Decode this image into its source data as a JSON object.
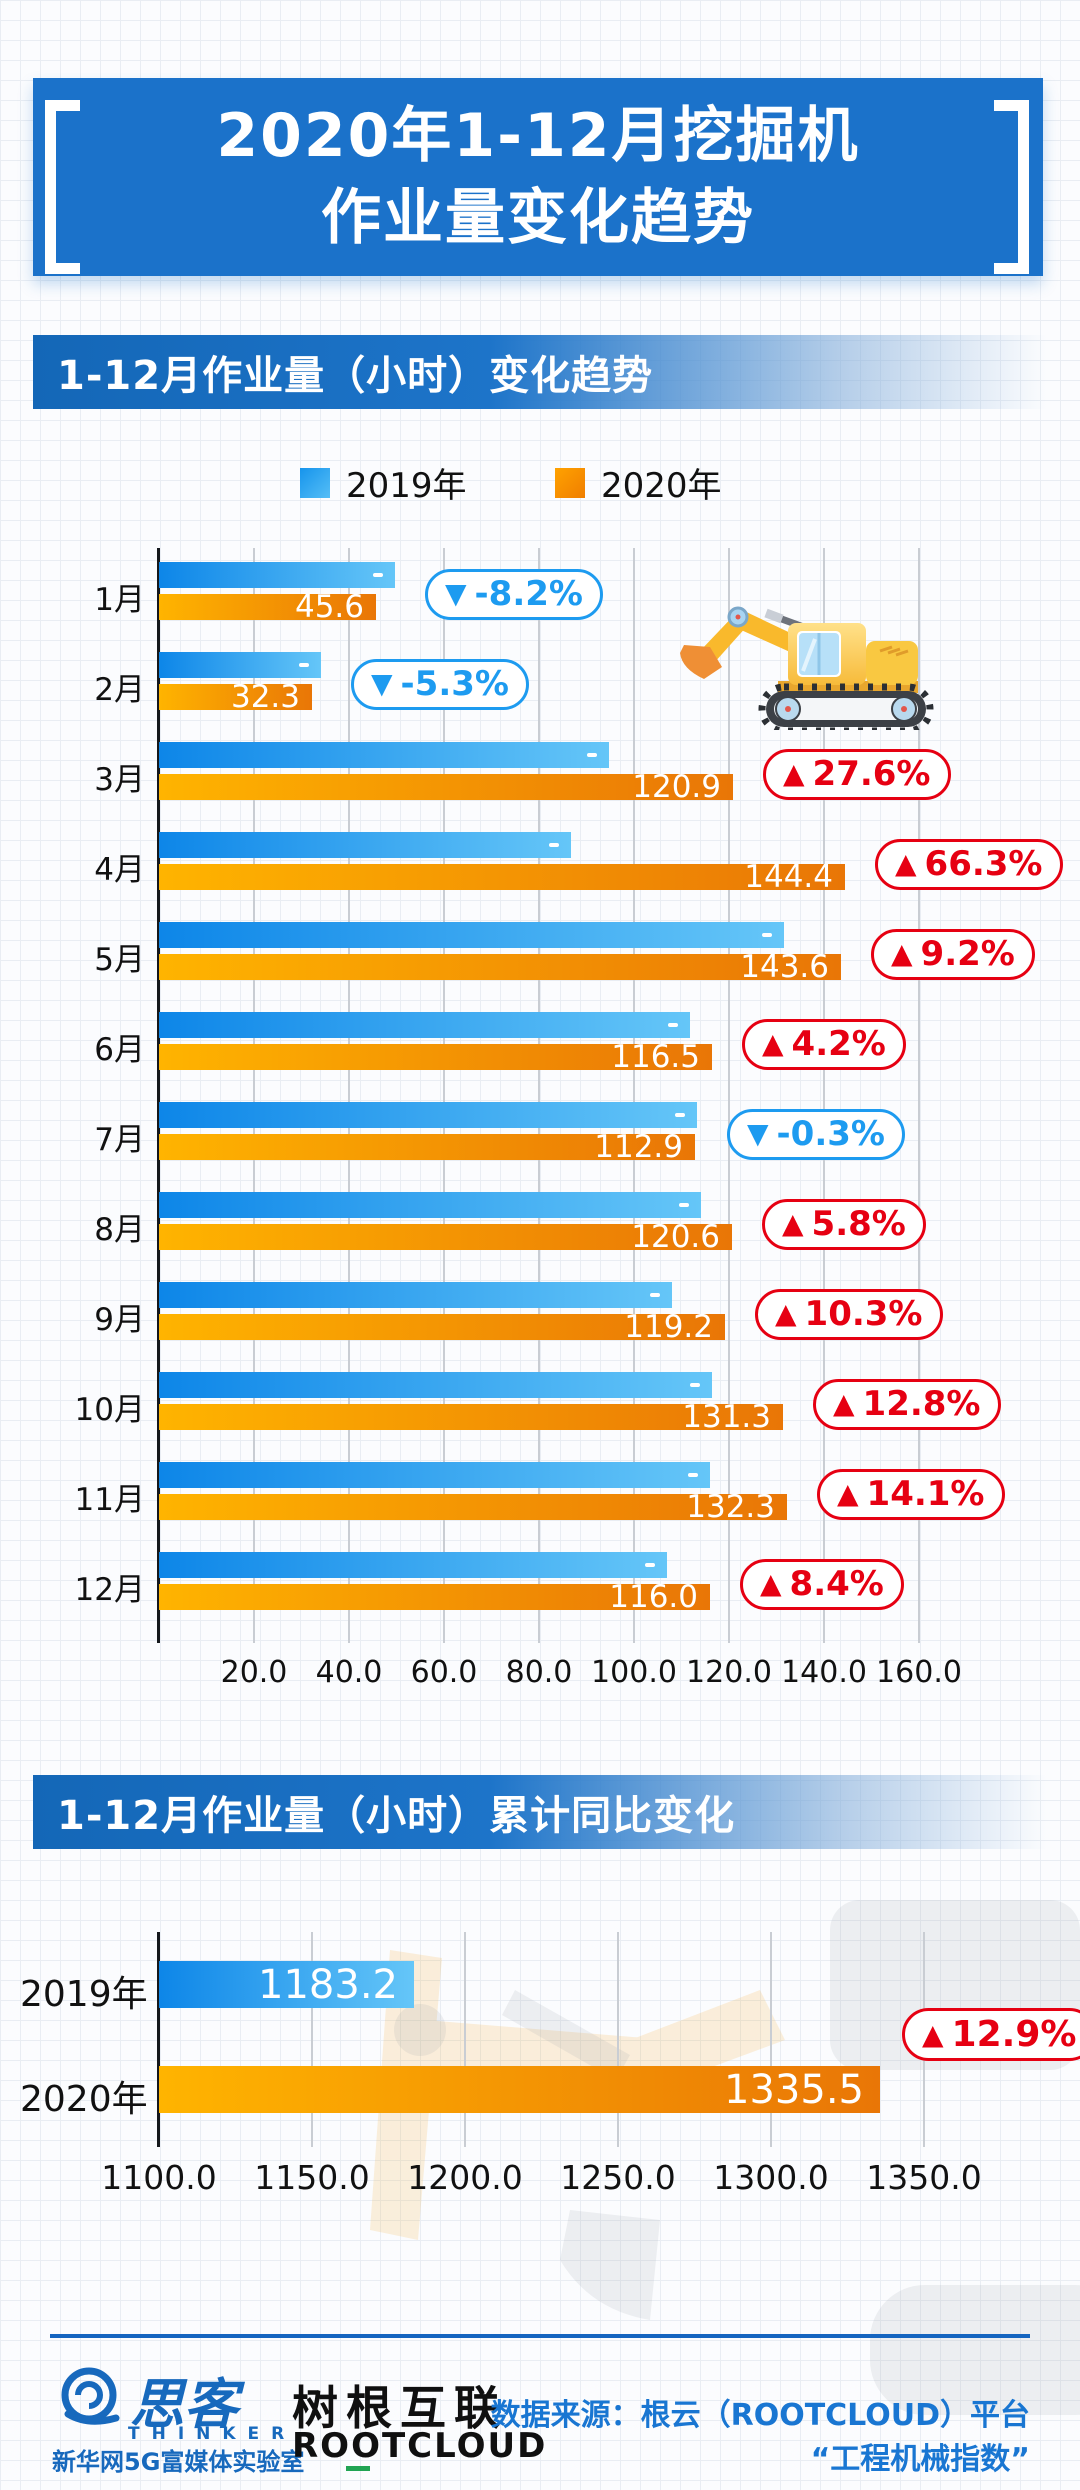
{
  "title": {
    "line1": "2020年1-12月挖掘机",
    "line2": "作业量变化趋势"
  },
  "sections": {
    "s1_header": "1-12月作业量（小时）变化趋势",
    "s2_header": "1-12月作业量（小时）累计同比变化"
  },
  "legend": {
    "items": [
      {
        "label": "2019年",
        "color": "#2ba6f0"
      },
      {
        "label": "2020年",
        "color": "#f79400"
      }
    ]
  },
  "colors": {
    "bar_blue_start": "#0d86e8",
    "bar_blue_end": "#65c6f8",
    "bar_orange_start": "#ffb400",
    "bar_orange_end": "#e97606",
    "badge_red": "#e60012",
    "badge_blue": "#1d9bf0",
    "banner_blue": "#1b72ca",
    "footer_blue": "#1769bd"
  },
  "chart_data": [
    {
      "type": "bar",
      "orientation": "horizontal",
      "title": "1-12月作业量（小时）变化趋势",
      "categories": [
        "1月",
        "2月",
        "3月",
        "4月",
        "5月",
        "6月",
        "7月",
        "8月",
        "9月",
        "10月",
        "11月",
        "12月"
      ],
      "series": [
        {
          "name": "2019年",
          "labels_shown": false,
          "values": [
            49.7,
            34.1,
            94.7,
            86.8,
            131.5,
            111.8,
            113.2,
            114.0,
            108.1,
            116.4,
            116.0,
            107.0
          ]
        },
        {
          "name": "2020年",
          "labels_shown": true,
          "values": [
            45.6,
            32.3,
            120.9,
            144.4,
            143.6,
            116.5,
            112.9,
            120.6,
            119.2,
            131.3,
            132.3,
            116.0
          ]
        }
      ],
      "yoy_badges": [
        {
          "arrow": "▼",
          "text": "-8.2%",
          "dir": "down"
        },
        {
          "arrow": "▼",
          "text": "-5.3%",
          "dir": "down"
        },
        {
          "arrow": "▲",
          "text": "27.6%",
          "dir": "up"
        },
        {
          "arrow": "▲",
          "text": "66.3%",
          "dir": "up"
        },
        {
          "arrow": "▲",
          "text": "9.2%",
          "dir": "up"
        },
        {
          "arrow": "▲",
          "text": "4.2%",
          "dir": "up"
        },
        {
          "arrow": "▼",
          "text": "-0.3%",
          "dir": "down"
        },
        {
          "arrow": "▲",
          "text": "5.8%",
          "dir": "up"
        },
        {
          "arrow": "▲",
          "text": "10.3%",
          "dir": "up"
        },
        {
          "arrow": "▲",
          "text": "12.8%",
          "dir": "up"
        },
        {
          "arrow": "▲",
          "text": "14.1%",
          "dir": "up"
        },
        {
          "arrow": "▲",
          "text": "8.4%",
          "dir": "up"
        }
      ],
      "x_ticks": [
        "20.0",
        "40.0",
        "60.0",
        "80.0",
        "100.0",
        "120.0",
        "140.0",
        "160.0"
      ],
      "xlim": [
        0,
        170
      ],
      "grid": true,
      "legend_position": "top"
    },
    {
      "type": "bar",
      "orientation": "horizontal",
      "title": "1-12月作业量（小时）累计同比变化",
      "categories": [
        "2019年",
        "2020年"
      ],
      "values": [
        1183.2,
        1335.5
      ],
      "value_labels": [
        "1183.2",
        "1335.5"
      ],
      "yoy_badge": {
        "arrow": "▲",
        "text": "12.9%",
        "dir": "up"
      },
      "x_ticks": [
        "1100.0",
        "1150.0",
        "1200.0",
        "1250.0",
        "1300.0",
        "1350.0"
      ],
      "xlim": [
        1100,
        1360
      ],
      "grid": true
    }
  ],
  "footer": {
    "thinker": {
      "name": "思客",
      "latin": "THINKER",
      "subtitle": "新华网5G富媒体实验室"
    },
    "rootcloud": {
      "name": "树根互联",
      "latin": "ROOTCLOUD"
    },
    "source_line1": "数据来源：根云（ROOTCLOUD）平台",
    "source_line2": "“工程机械指数”"
  }
}
